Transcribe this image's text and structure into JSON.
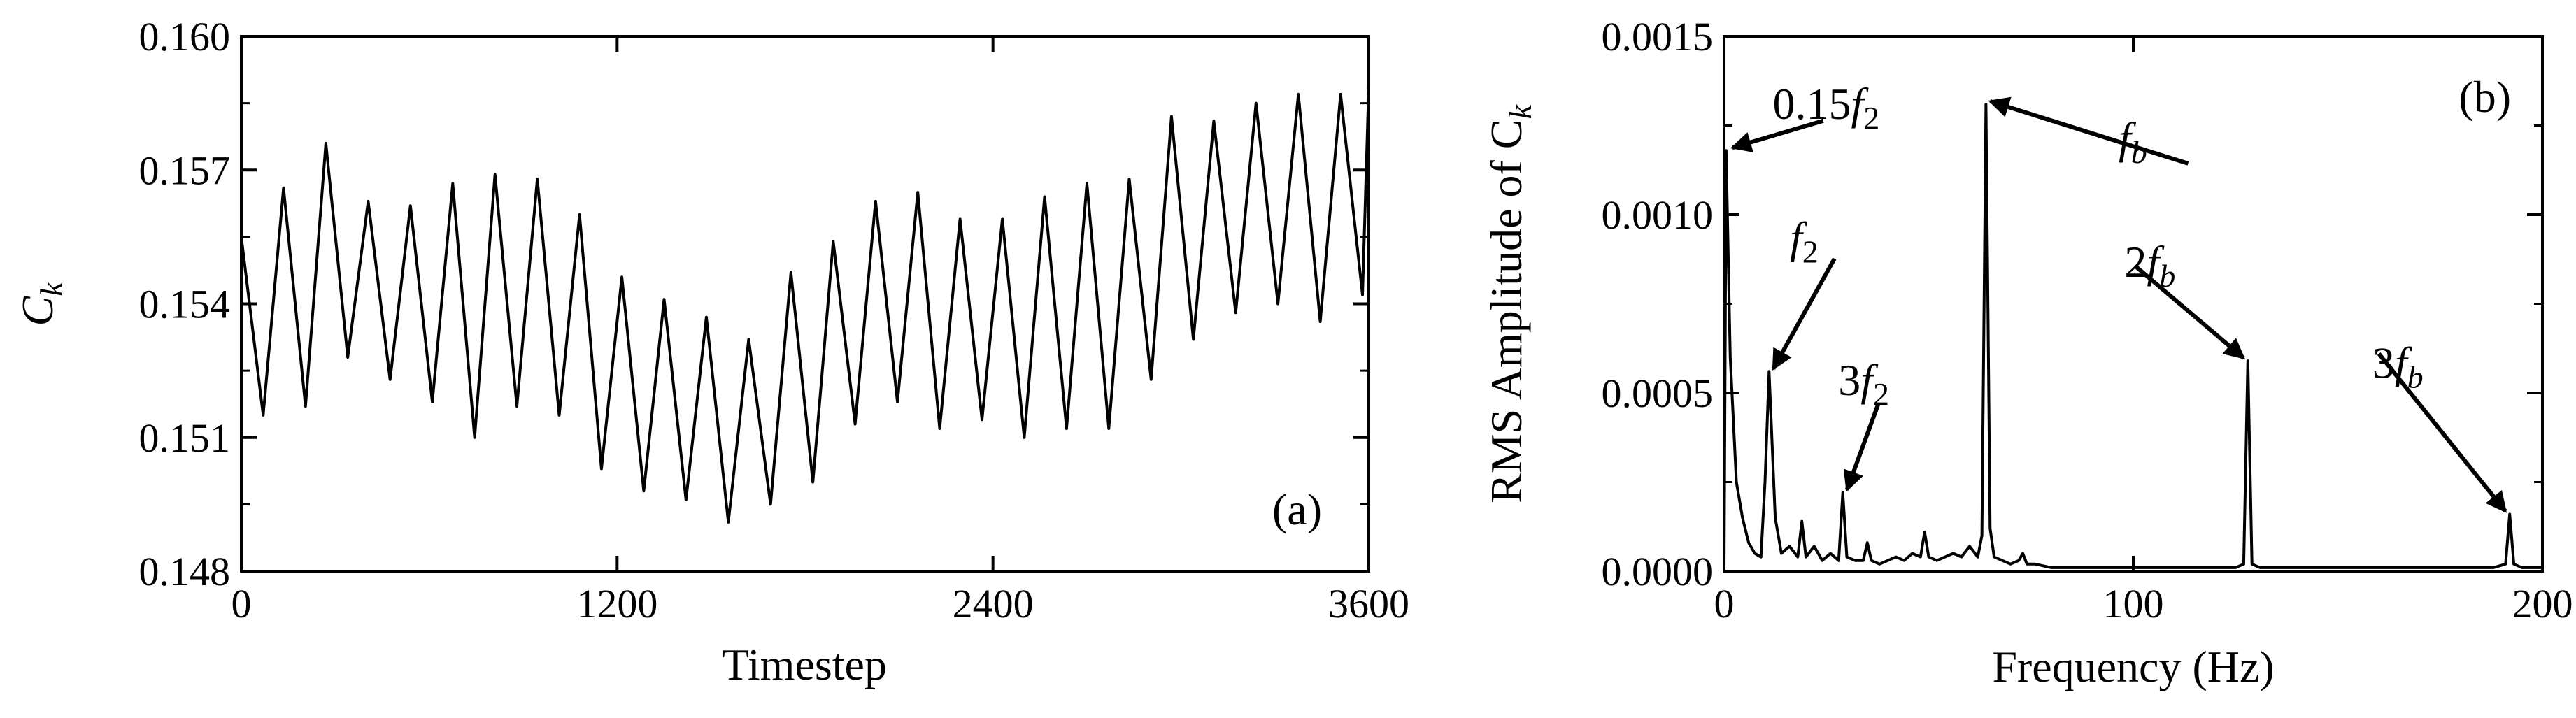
{
  "chart_data": [
    {
      "type": "line",
      "panel_label": "(a)",
      "xlabel": "Timestep",
      "ylabel": {
        "base": "C",
        "sub": "k"
      },
      "xlim": [
        0,
        3600
      ],
      "ylim": [
        0.148,
        0.16
      ],
      "xticks": [
        0,
        1200,
        2400,
        3600
      ],
      "xtick_labels": [
        "0",
        "1200",
        "2400",
        "3600"
      ],
      "yticks": [
        0.148,
        0.151,
        0.154,
        0.157,
        0.16
      ],
      "ytick_labels": [
        "0.148",
        "0.151",
        "0.154",
        "0.157",
        "0.160"
      ],
      "series": [
        {
          "name": "Ck",
          "x": [
            0,
            70,
            135,
            205,
            270,
            340,
            405,
            475,
            540,
            610,
            675,
            745,
            810,
            880,
            945,
            1015,
            1080,
            1150,
            1215,
            1285,
            1350,
            1420,
            1485,
            1555,
            1620,
            1690,
            1755,
            1825,
            1890,
            1960,
            2025,
            2095,
            2160,
            2230,
            2295,
            2365,
            2430,
            2500,
            2565,
            2635,
            2700,
            2770,
            2835,
            2905,
            2970,
            3040,
            3105,
            3175,
            3240,
            3310,
            3375,
            3445,
            3510,
            3580,
            3600
          ],
          "y": [
            0.1555,
            0.1515,
            0.1566,
            0.1517,
            0.1576,
            0.1528,
            0.1563,
            0.1523,
            0.1562,
            0.1518,
            0.1567,
            0.151,
            0.1569,
            0.1517,
            0.1568,
            0.1515,
            0.156,
            0.1503,
            0.1546,
            0.1498,
            0.1541,
            0.1496,
            0.1537,
            0.1491,
            0.1532,
            0.1495,
            0.1547,
            0.15,
            0.1554,
            0.1513,
            0.1563,
            0.1518,
            0.1565,
            0.1512,
            0.1559,
            0.1514,
            0.1559,
            0.151,
            0.1564,
            0.1512,
            0.1567,
            0.1512,
            0.1568,
            0.1523,
            0.1582,
            0.1532,
            0.1581,
            0.1538,
            0.1585,
            0.154,
            0.1587,
            0.1536,
            0.1587,
            0.1542,
            0.1589
          ]
        }
      ]
    },
    {
      "type": "line",
      "panel_label": "(b)",
      "xlabel": "Frequency (Hz)",
      "ylabel": {
        "base": "RMS Amplitude of C",
        "sub": "k"
      },
      "xlim": [
        0,
        200
      ],
      "ylim": [
        0.0,
        0.0015
      ],
      "xticks": [
        0,
        100,
        200
      ],
      "xtick_labels": [
        "0",
        "100",
        "200"
      ],
      "yticks": [
        0.0,
        0.0005,
        0.001,
        0.0015
      ],
      "ytick_labels": [
        "0.0000",
        "0.0005",
        "0.0010",
        "0.0015"
      ],
      "series": [
        {
          "name": "spectrum",
          "x": [
            0.5,
            1.5,
            3,
            4.5,
            6,
            7.5,
            9,
            10,
            11,
            12.5,
            14,
            16,
            18,
            19,
            20,
            22,
            24,
            26,
            28,
            29,
            30,
            32,
            34,
            35,
            36,
            38,
            40,
            42,
            44,
            46,
            48,
            49,
            50,
            52,
            54,
            56,
            58,
            60,
            62,
            63,
            64,
            65,
            66,
            68,
            70,
            72,
            73,
            74,
            76,
            80,
            90,
            100,
            110,
            120,
            125,
            127,
            128,
            129,
            131,
            135,
            140,
            150,
            160,
            170,
            180,
            188,
            191,
            192,
            193,
            195,
            200
          ],
          "y": [
            0.00118,
            0.0006,
            0.00025,
            0.00015,
            8e-05,
            5e-05,
            4e-05,
            0.00025,
            0.00056,
            0.00015,
            5e-05,
            7e-05,
            4e-05,
            0.00014,
            4e-05,
            7e-05,
            3e-05,
            5e-05,
            3e-05,
            0.00022,
            4e-05,
            3e-05,
            3e-05,
            8e-05,
            3e-05,
            2e-05,
            3e-05,
            4e-05,
            3e-05,
            5e-05,
            4e-05,
            0.00011,
            4e-05,
            3e-05,
            4e-05,
            5e-05,
            4e-05,
            7e-05,
            4e-05,
            0.0001,
            0.00131,
            0.00012,
            4e-05,
            3e-05,
            2e-05,
            3e-05,
            5e-05,
            2e-05,
            2e-05,
            1e-05,
            1e-05,
            1e-05,
            1e-05,
            1e-05,
            1e-05,
            2e-05,
            0.00059,
            2e-05,
            1e-05,
            1e-05,
            1e-05,
            1e-05,
            1e-05,
            1e-05,
            1e-05,
            1e-05,
            2e-05,
            0.00016,
            2e-05,
            1e-05,
            1e-05
          ]
        }
      ],
      "annotations": [
        {
          "id": "0.15f2",
          "prefix": "0.15",
          "var": "f",
          "sub": "2",
          "x": 1,
          "y": 0.00118
        },
        {
          "id": "f2",
          "prefix": "",
          "var": "f",
          "sub": "2",
          "x": 11,
          "y": 0.00056
        },
        {
          "id": "3f2",
          "prefix": "3",
          "var": "f",
          "sub": "2",
          "x": 29,
          "y": 0.00022
        },
        {
          "id": "fb",
          "prefix": "",
          "var": "f",
          "sub": "b",
          "x": 64,
          "y": 0.00131
        },
        {
          "id": "2fb",
          "prefix": "2",
          "var": "f",
          "sub": "b",
          "x": 128,
          "y": 0.00059
        },
        {
          "id": "3fb",
          "prefix": "3",
          "var": "f",
          "sub": "b",
          "x": 192,
          "y": 0.00016
        }
      ]
    }
  ]
}
